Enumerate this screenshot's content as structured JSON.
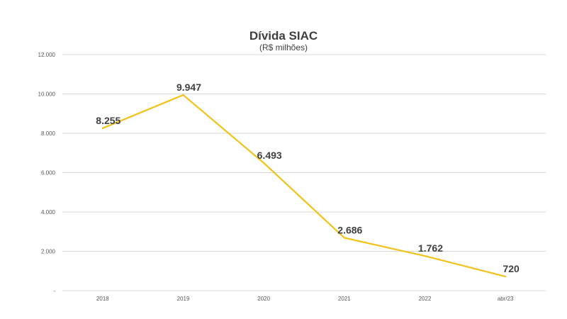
{
  "chart_data": {
    "type": "line",
    "title": "Dívida SIAC",
    "subtitle": "(R$ milhões)",
    "categories": [
      "2018",
      "2019",
      "2020",
      "2021",
      "2022",
      "abr/23"
    ],
    "series": [
      {
        "values": [
          8255,
          9947,
          6493,
          2686,
          1762,
          720
        ]
      }
    ],
    "data_labels": [
      "8.255",
      "9.947",
      "6.493",
      "2.686",
      "1.762",
      "720"
    ],
    "y_ticks": [
      0,
      2000,
      4000,
      6000,
      8000,
      10000,
      12000
    ],
    "y_tick_labels": [
      "-",
      "2.000",
      "4.000",
      "6.000",
      "8.000",
      "10.000",
      "12.000"
    ],
    "ylim": [
      0,
      12000
    ],
    "grid": true,
    "legend": "none",
    "colors": {
      "line": "#F2C218",
      "grid": "#D9D9D9",
      "text": "#404040",
      "axis_text": "#595959"
    }
  }
}
